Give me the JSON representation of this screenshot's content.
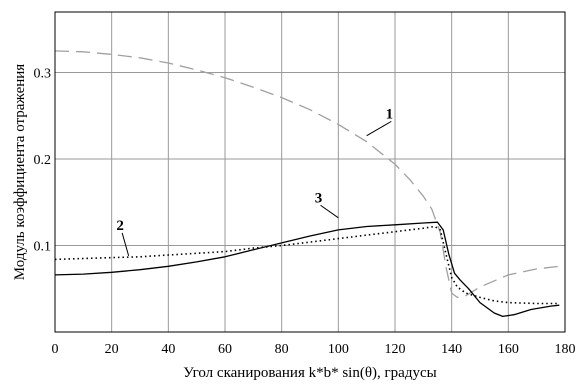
{
  "chart_data": {
    "type": "line",
    "title": "",
    "xlabel": "Угол сканирования  k*b* sin(θ), градусы",
    "ylabel": "Модуль коэффициента отражения",
    "xlim": [
      0,
      180
    ],
    "ylim": [
      0.0,
      0.37
    ],
    "grid": true,
    "x_ticks": [
      0,
      20,
      40,
      60,
      80,
      100,
      120,
      140,
      160,
      180
    ],
    "y_ticks": [
      0.1,
      0.2,
      0.3
    ],
    "x_tick_labels": [
      "0",
      "20",
      "40",
      "60",
      "80",
      "100",
      "120",
      "140",
      "160",
      "180"
    ],
    "y_tick_labels": [
      "0.1",
      "0.2",
      "0.3"
    ],
    "series": [
      {
        "style": "dashed",
        "color": "#a0a0a0",
        "x": [
          0,
          10,
          20,
          30,
          40,
          50,
          60,
          70,
          80,
          90,
          100,
          110,
          120,
          125,
          130,
          133,
          136,
          138,
          140,
          142,
          145,
          150,
          160,
          170,
          178
        ],
        "y": [
          0.325,
          0.324,
          0.321,
          0.317,
          0.311,
          0.303,
          0.294,
          0.283,
          0.271,
          0.257,
          0.24,
          0.22,
          0.194,
          0.177,
          0.157,
          0.142,
          0.115,
          0.075,
          0.045,
          0.04,
          0.042,
          0.052,
          0.066,
          0.073,
          0.076
        ]
      },
      {
        "style": "dotted",
        "color": "#000000",
        "x": [
          0,
          10,
          20,
          30,
          40,
          50,
          60,
          70,
          80,
          90,
          100,
          110,
          120,
          130,
          134,
          136,
          138,
          140,
          142,
          145,
          150,
          155,
          160,
          170,
          178
        ],
        "y": [
          0.084,
          0.085,
          0.086,
          0.087,
          0.089,
          0.091,
          0.093,
          0.097,
          0.1,
          0.104,
          0.108,
          0.112,
          0.116,
          0.12,
          0.122,
          0.118,
          0.09,
          0.063,
          0.052,
          0.045,
          0.04,
          0.036,
          0.034,
          0.033,
          0.033
        ]
      },
      {
        "style": "solid",
        "color": "#000000",
        "x": [
          0,
          10,
          20,
          30,
          40,
          50,
          60,
          70,
          80,
          90,
          100,
          110,
          120,
          130,
          135,
          137,
          139,
          141,
          143,
          146,
          150,
          155,
          158,
          162,
          168,
          175,
          178
        ],
        "y": [
          0.066,
          0.067,
          0.069,
          0.072,
          0.076,
          0.081,
          0.087,
          0.095,
          0.103,
          0.111,
          0.118,
          0.122,
          0.124,
          0.126,
          0.127,
          0.118,
          0.09,
          0.068,
          0.06,
          0.05,
          0.034,
          0.022,
          0.018,
          0.02,
          0.026,
          0.03,
          0.031
        ]
      }
    ],
    "annotations": [
      {
        "text": "1",
        "x": 118,
        "y": 0.247,
        "lx": 110,
        "ly": 0.227
      },
      {
        "text": "2",
        "x": 23,
        "y": 0.118,
        "lx": 26,
        "ly": 0.088
      },
      {
        "text": "3",
        "x": 93,
        "y": 0.15,
        "lx": 100,
        "ly": 0.132
      }
    ]
  }
}
